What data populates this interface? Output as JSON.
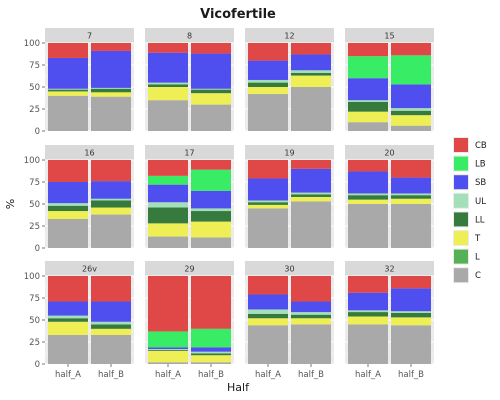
{
  "chart_data": {
    "type": "bar",
    "stacked": true,
    "title": "Vicofertile",
    "xlabel": "Half",
    "ylabel": "%",
    "ylim": [
      0,
      100
    ],
    "yticks": [
      "0",
      "25",
      "50",
      "75",
      "100"
    ],
    "categories": [
      "half_A",
      "half_B"
    ],
    "grid": true,
    "legend_position": "right",
    "facet_layout": {
      "rows": 3,
      "cols": 4
    },
    "stack_order_bottom_to_top": [
      "C",
      "L",
      "T",
      "LL",
      "UL",
      "SB",
      "LB",
      "CB"
    ],
    "legend": [
      {
        "name": "CB",
        "color": "#e04848"
      },
      {
        "name": "LB",
        "color": "#39ec66"
      },
      {
        "name": "SB",
        "color": "#4f4ff0"
      },
      {
        "name": "UL",
        "color": "#a3dfb9"
      },
      {
        "name": "LL",
        "color": "#367a3d"
      },
      {
        "name": "T",
        "color": "#eeee55"
      },
      {
        "name": "L",
        "color": "#55b155"
      },
      {
        "name": "C",
        "color": "#a9a9a9"
      }
    ],
    "facets": [
      {
        "label": "7",
        "bars": [
          {
            "category": "half_A",
            "values": {
              "C": 40,
              "L": 0,
              "T": 5,
              "LL": 2,
              "UL": 1,
              "SB": 35,
              "LB": 0,
              "CB": 17
            }
          },
          {
            "category": "half_B",
            "values": {
              "C": 39,
              "L": 0,
              "T": 5,
              "LL": 4,
              "UL": 1,
              "SB": 42,
              "LB": 0,
              "CB": 9
            }
          }
        ]
      },
      {
        "label": "8",
        "bars": [
          {
            "category": "half_A",
            "values": {
              "C": 35,
              "L": 0,
              "T": 15,
              "LL": 3,
              "UL": 2,
              "SB": 34,
              "LB": 0,
              "CB": 11
            }
          },
          {
            "category": "half_B",
            "values": {
              "C": 30,
              "L": 0,
              "T": 13,
              "LL": 4,
              "UL": 1,
              "SB": 40,
              "LB": 0,
              "CB": 12
            }
          }
        ]
      },
      {
        "label": "12",
        "bars": [
          {
            "category": "half_A",
            "values": {
              "C": 42,
              "L": 0,
              "T": 8,
              "LL": 5,
              "UL": 3,
              "SB": 22,
              "LB": 0,
              "CB": 20
            }
          },
          {
            "category": "half_B",
            "values": {
              "C": 50,
              "L": 0,
              "T": 13,
              "LL": 3,
              "UL": 3,
              "SB": 18,
              "LB": 0,
              "CB": 13
            }
          }
        ]
      },
      {
        "label": "15",
        "bars": [
          {
            "category": "half_A",
            "values": {
              "C": 10,
              "L": 0,
              "T": 12,
              "LL": 11,
              "UL": 2,
              "SB": 25,
              "LB": 25,
              "CB": 15
            }
          },
          {
            "category": "half_B",
            "values": {
              "C": 6,
              "L": 0,
              "T": 12,
              "LL": 5,
              "UL": 3,
              "SB": 27,
              "LB": 33,
              "CB": 14
            }
          }
        ]
      },
      {
        "label": "16",
        "bars": [
          {
            "category": "half_A",
            "values": {
              "C": 33,
              "L": 0,
              "T": 9,
              "LL": 6,
              "UL": 3,
              "SB": 24,
              "LB": 0,
              "CB": 25
            }
          },
          {
            "category": "half_B",
            "values": {
              "C": 38,
              "L": 0,
              "T": 8,
              "LL": 8,
              "UL": 2,
              "SB": 20,
              "LB": 0,
              "CB": 24
            }
          }
        ]
      },
      {
        "label": "17",
        "bars": [
          {
            "category": "half_A",
            "values": {
              "C": 13,
              "L": 0,
              "T": 15,
              "LL": 18,
              "UL": 6,
              "SB": 20,
              "LB": 10,
              "CB": 18
            }
          },
          {
            "category": "half_B",
            "values": {
              "C": 12,
              "L": 0,
              "T": 18,
              "LL": 12,
              "UL": 3,
              "SB": 20,
              "LB": 24,
              "CB": 11
            }
          }
        ]
      },
      {
        "label": "19",
        "bars": [
          {
            "category": "half_A",
            "values": {
              "C": 45,
              "L": 0,
              "T": 4,
              "LL": 3,
              "UL": 2,
              "SB": 25,
              "LB": 0,
              "CB": 21
            }
          },
          {
            "category": "half_B",
            "values": {
              "C": 53,
              "L": 0,
              "T": 5,
              "LL": 3,
              "UL": 2,
              "SB": 27,
              "LB": 0,
              "CB": 10
            }
          }
        ]
      },
      {
        "label": "20",
        "bars": [
          {
            "category": "half_A",
            "values": {
              "C": 50,
              "L": 0,
              "T": 5,
              "LL": 5,
              "UL": 2,
              "SB": 25,
              "LB": 0,
              "CB": 13
            }
          },
          {
            "category": "half_B",
            "values": {
              "C": 50,
              "L": 0,
              "T": 6,
              "LL": 4,
              "UL": 2,
              "SB": 18,
              "LB": 0,
              "CB": 20
            }
          }
        ]
      },
      {
        "label": "26v",
        "bars": [
          {
            "category": "half_A",
            "values": {
              "C": 33,
              "L": 0,
              "T": 15,
              "LL": 4,
              "UL": 3,
              "SB": 16,
              "LB": 0,
              "CB": 29
            }
          },
          {
            "category": "half_B",
            "values": {
              "C": 33,
              "L": 0,
              "T": 7,
              "LL": 5,
              "UL": 3,
              "SB": 23,
              "LB": 0,
              "CB": 29
            }
          }
        ]
      },
      {
        "label": "29",
        "bars": [
          {
            "category": "half_A",
            "values": {
              "C": 2,
              "L": 0,
              "T": 13,
              "LL": 1,
              "UL": 1,
              "SB": 2,
              "LB": 18,
              "CB": 63
            }
          },
          {
            "category": "half_B",
            "values": {
              "C": 2,
              "L": 0,
              "T": 8,
              "LL": 2,
              "UL": 2,
              "SB": 5,
              "LB": 21,
              "CB": 60
            }
          }
        ]
      },
      {
        "label": "30",
        "bars": [
          {
            "category": "half_A",
            "values": {
              "C": 44,
              "L": 0,
              "T": 8,
              "LL": 5,
              "UL": 5,
              "SB": 17,
              "LB": 0,
              "CB": 21
            }
          },
          {
            "category": "half_B",
            "values": {
              "C": 45,
              "L": 0,
              "T": 7,
              "LL": 4,
              "UL": 3,
              "SB": 12,
              "LB": 0,
              "CB": 29
            }
          }
        ]
      },
      {
        "label": "32",
        "bars": [
          {
            "category": "half_A",
            "values": {
              "C": 45,
              "L": 0,
              "T": 9,
              "LL": 5,
              "UL": 2,
              "SB": 20,
              "LB": 0,
              "CB": 19
            }
          },
          {
            "category": "half_B",
            "values": {
              "C": 44,
              "L": 0,
              "T": 9,
              "LL": 5,
              "UL": 2,
              "SB": 26,
              "LB": 0,
              "CB": 14
            }
          }
        ]
      }
    ]
  }
}
